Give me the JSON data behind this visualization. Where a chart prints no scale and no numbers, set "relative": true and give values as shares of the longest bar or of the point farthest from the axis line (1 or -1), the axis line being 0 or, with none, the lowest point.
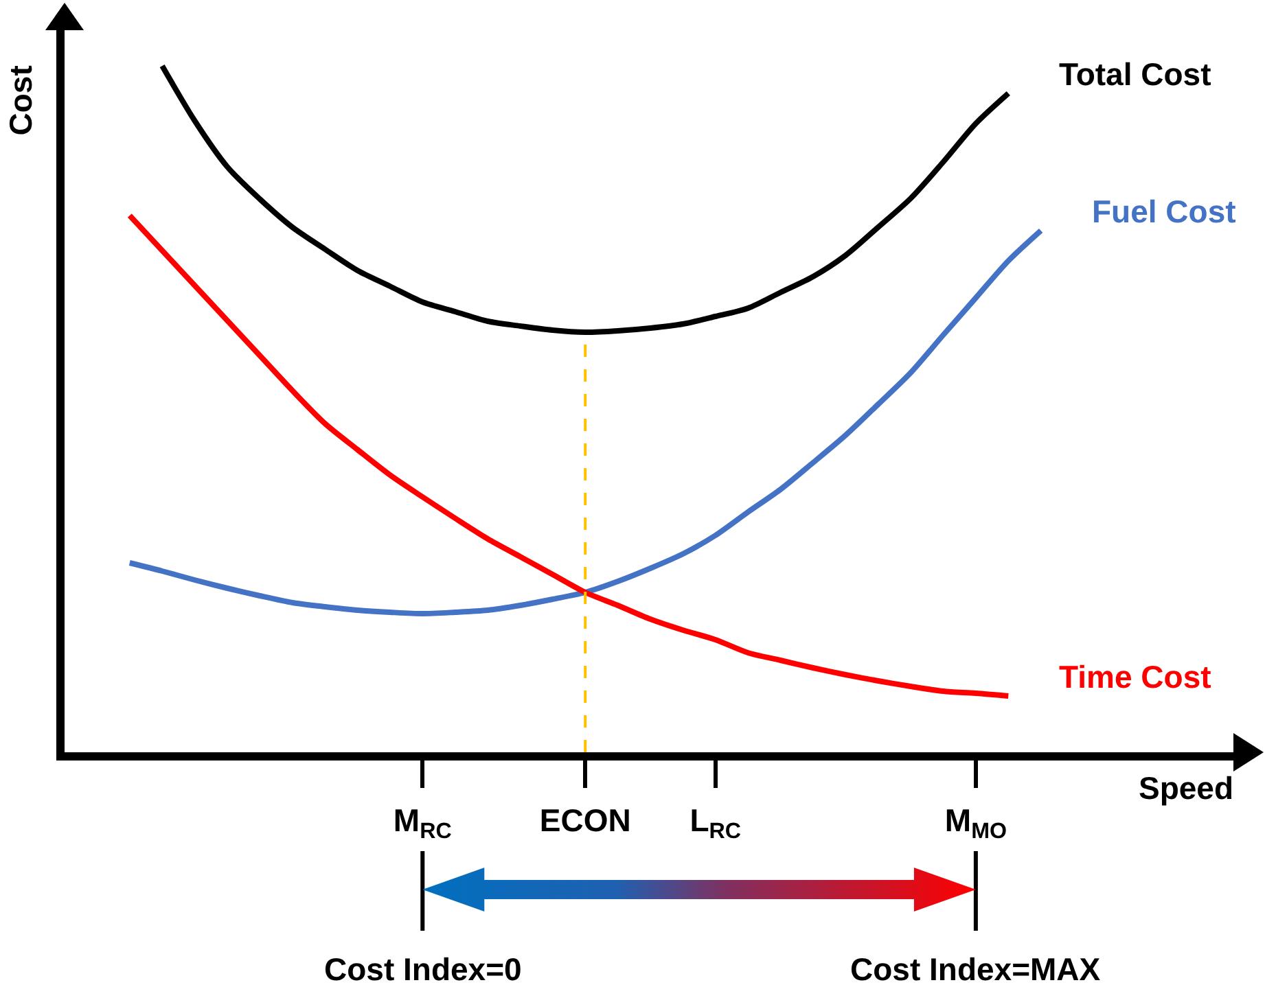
{
  "chart_data": {
    "type": "line",
    "relative": true,
    "xlabel": "Speed",
    "ylabel": "Cost",
    "categories": [
      null,
      null,
      null,
      null,
      null,
      null,
      null,
      null,
      null,
      "M$_{RC}$",
      null,
      null,
      null,
      null,
      "ECON",
      null,
      null,
      null,
      "L$_{RC}$",
      null,
      null,
      null,
      null,
      null,
      null,
      null,
      "M$_{MO}$",
      null,
      null
    ],
    "series": [
      {
        "name": "Total Cost",
        "color": "#000000",
        "values": [
          null,
          1.0,
          0.92,
          0.853,
          0.806,
          0.765,
          0.733,
          0.702,
          0.679,
          0.656,
          0.642,
          0.628,
          0.621,
          0.615,
          0.612,
          0.614,
          0.618,
          0.624,
          0.635,
          0.647,
          0.67,
          0.693,
          0.724,
          0.765,
          0.807,
          0.86,
          0.916,
          0.96,
          null
        ]
      },
      {
        "name": "Fuel Cost",
        "color": "#4472c4",
        "values": [
          0.276,
          0.264,
          0.251,
          0.239,
          0.228,
          0.218,
          0.212,
          0.207,
          0.204,
          0.202,
          0.204,
          0.207,
          0.214,
          0.223,
          0.233,
          0.249,
          0.268,
          0.289,
          0.316,
          0.35,
          0.383,
          0.422,
          0.462,
          0.507,
          0.553,
          0.608,
          0.662,
          0.716,
          0.76
        ]
      },
      {
        "name": "Time Cost",
        "color": "#ff0000",
        "values": [
          0.782,
          0.731,
          0.68,
          0.629,
          0.578,
          0.527,
          0.479,
          0.441,
          0.404,
          0.372,
          0.341,
          0.311,
          0.285,
          0.259,
          0.233,
          0.214,
          0.194,
          0.178,
          0.164,
          0.145,
          0.134,
          0.123,
          0.113,
          0.104,
          0.096,
          0.089,
          0.086,
          0.082,
          null
        ]
      }
    ],
    "ref_lines": [
      {
        "axis": "x",
        "value": "ECON",
        "color": "#ffc000",
        "line_style": "dashed"
      }
    ],
    "annotations": [
      "Cost Index=0",
      "Cost Index=MAX"
    ],
    "marker": "none",
    "line_style": "solid",
    "grid": false,
    "legend": false
  }
}
